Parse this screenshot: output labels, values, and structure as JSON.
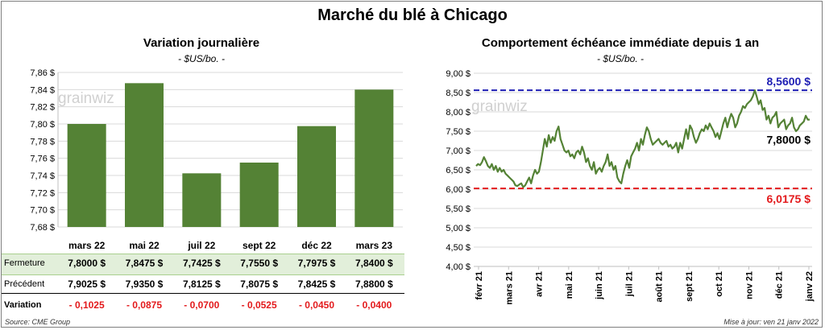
{
  "title": "Marché du blé à Chicago",
  "left": {
    "title": "Variation journalière",
    "unit": "- $US/bo. -",
    "watermark": "grainwiz",
    "row_labels": {
      "close": "Fermeture",
      "prev": "Précédent",
      "change": "Variation"
    },
    "close": [
      "7,8000  $",
      "7,8475  $",
      "7,7425  $",
      "7,7550  $",
      "7,7975  $",
      "7,8400  $"
    ],
    "prev": [
      "7,9025  $",
      "7,9350  $",
      "7,8125  $",
      "7,8075  $",
      "7,8425  $",
      "7,8800  $"
    ],
    "change": [
      "- 0,1025",
      "- 0,0875",
      "- 0,0700",
      "- 0,0525",
      "- 0,0450",
      "- 0,0400"
    ]
  },
  "right": {
    "title": "Comportement  échéance immédiate depuis 1 an",
    "unit": "- $US/bo. -",
    "watermark": "grainwiz",
    "max_label": "8,5600 $",
    "last_label": "7,8000 $",
    "min_label": "6,0175 $"
  },
  "footer": {
    "source": "Source: CME Group",
    "updated": "Mise à jour: ven 21 janv 2022"
  },
  "colors": {
    "bar": "#548235",
    "line": "#548235",
    "max": "#1f1fb4",
    "min": "#e31a1c",
    "band": "#e2efda",
    "neg": "#e31a1c"
  },
  "chart_data": [
    {
      "type": "bar",
      "categories": [
        "mars 22",
        "mai 22",
        "juil 22",
        "sept 22",
        "déc 22",
        "mars 23"
      ],
      "values": [
        7.8,
        7.8475,
        7.7425,
        7.755,
        7.7975,
        7.84
      ],
      "ylim": [
        7.68,
        7.86
      ],
      "yticks": [
        "7,68 $",
        "7,70 $",
        "7,72 $",
        "7,74 $",
        "7,76 $",
        "7,78 $",
        "7,80 $",
        "7,82 $",
        "7,84 $",
        "7,86 $"
      ],
      "grid": true
    },
    {
      "type": "line",
      "ylim": [
        4.0,
        9.0
      ],
      "yticks": [
        "4,00 $",
        "4,50 $",
        "5,00 $",
        "5,50 $",
        "6,00 $",
        "6,50 $",
        "7,00 $",
        "7,50 $",
        "8,00 $",
        "8,50 $",
        "9,00 $"
      ],
      "xticks": [
        "févr 21",
        "mars 21",
        "avr 21",
        "mai 21",
        "juin 21",
        "juil 21",
        "août 21",
        "sept 21",
        "oct 21",
        "nov 21",
        "déc 21",
        "janv 22"
      ],
      "hlines": [
        8.56,
        6.0175
      ],
      "series": [
        {
          "values": [
            6.6,
            6.65,
            6.62,
            6.7,
            6.83,
            6.72,
            6.6,
            6.55,
            6.65,
            6.5,
            6.6,
            6.45,
            6.55,
            6.45,
            6.5,
            6.4,
            6.35,
            6.3,
            6.25,
            6.2,
            6.1,
            6.08,
            6.12,
            6.15,
            6.05,
            6.1,
            6.2,
            6.3,
            6.15,
            6.35,
            6.5,
            6.4,
            6.45,
            6.7,
            7.0,
            7.3,
            7.1,
            7.4,
            7.2,
            7.35,
            7.25,
            7.5,
            7.62,
            7.3,
            7.15,
            7.0,
            6.95,
            7.0,
            6.85,
            6.9,
            6.8,
            6.95,
            7.0,
            6.9,
            7.1,
            6.95,
            6.7,
            6.8,
            6.6,
            6.5,
            6.7,
            6.4,
            6.5,
            6.55,
            6.45,
            6.6,
            6.7,
            6.9,
            6.6,
            6.7,
            6.5,
            6.6,
            6.3,
            6.2,
            6.15,
            6.4,
            6.6,
            6.75,
            6.55,
            6.85,
            6.95,
            7.05,
            7.2,
            7.0,
            7.3,
            7.15,
            7.4,
            7.6,
            7.5,
            7.3,
            7.15,
            7.2,
            7.25,
            7.3,
            7.2,
            7.15,
            7.2,
            7.25,
            7.1,
            7.15,
            7.05,
            7.1,
            7.2,
            6.95,
            7.2,
            7.05,
            7.3,
            7.55,
            7.3,
            7.65,
            7.55,
            7.35,
            7.2,
            7.3,
            7.45,
            7.55,
            7.5,
            7.65,
            7.55,
            7.7,
            7.6,
            7.5,
            7.35,
            7.45,
            7.3,
            7.5,
            7.7,
            7.85,
            7.6,
            7.8,
            7.95,
            7.85,
            7.6,
            7.7,
            7.9,
            8.0,
            8.15,
            8.1,
            8.2,
            8.25,
            8.3,
            8.4,
            8.56,
            8.4,
            8.2,
            8.3,
            8.05,
            8.1,
            7.8,
            7.9,
            7.7,
            7.85,
            7.9,
            8.0,
            7.6,
            7.7,
            7.75,
            7.8,
            7.55,
            7.65,
            7.7,
            7.85,
            7.6,
            7.5,
            7.55,
            7.65,
            7.7,
            7.75,
            7.9,
            7.8,
            7.8
          ]
        }
      ]
    }
  ]
}
